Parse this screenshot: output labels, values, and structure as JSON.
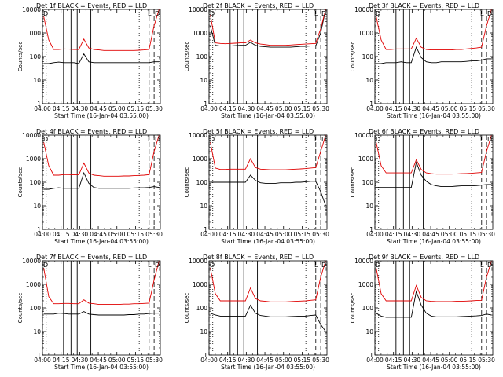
{
  "colors": {
    "events": "#000000",
    "lld": "#e00000",
    "axis": "#000000",
    "background": "#ffffff"
  },
  "chart_data": [
    {
      "type": "line",
      "title": "Det 1f BLACK = Events, RED = LLD",
      "xlabel": "Start Time (16-Jan-04 03:55:00)",
      "ylabel": "Counts/sec",
      "ylim": [
        1,
        10000
      ],
      "yscale": "log",
      "xlim": [
        "04:00",
        "05:35"
      ],
      "xticks": [
        "04:00",
        "04:15",
        "04:30",
        "04:45",
        "05:00",
        "05:15",
        "05:30"
      ],
      "ytick_labels": [
        "1",
        "10",
        "100",
        "1000",
        "10000"
      ],
      "corner_labels": [
        "D",
        "L",
        "D"
      ],
      "series": [
        {
          "name": "Events",
          "values": [
            50,
            50,
            55,
            58,
            55,
            55,
            55,
            50,
            130,
            60,
            55,
            55,
            55,
            55,
            55,
            55,
            55,
            55,
            55,
            55,
            55,
            55,
            60,
            60
          ]
        },
        {
          "name": "LLD",
          "values": [
            5000,
            500,
            200,
            200,
            210,
            205,
            200,
            200,
            550,
            230,
            200,
            190,
            180,
            180,
            180,
            180,
            180,
            180,
            180,
            185,
            190,
            200,
            2000,
            10000
          ]
        }
      ],
      "markers": {
        "dashed": [
          "04:00",
          "05:26",
          "05:30"
        ],
        "dotted": [
          "04:03",
          "05:18"
        ],
        "solid": [
          "04:17",
          "04:23",
          "04:28",
          "04:39"
        ]
      }
    },
    {
      "type": "line",
      "title": "Det 2f BLACK = Events, RED = LLD",
      "xlabel": "Start Time (16-Jan-04 03:55:00)",
      "ylabel": "Counts/sec",
      "ylim": [
        1,
        10000
      ],
      "yscale": "log",
      "xlim": [
        "04:00",
        "05:35"
      ],
      "xticks": [
        "04:00",
        "04:15",
        "04:30",
        "04:45",
        "05:00",
        "05:15",
        "05:30"
      ],
      "ytick_labels": [
        "1",
        "10",
        "100",
        "1000",
        "10000"
      ],
      "corner_labels": [
        "D",
        "L",
        "D"
      ],
      "series": [
        {
          "name": "Events",
          "values": [
            2000,
            300,
            280,
            280,
            280,
            290,
            300,
            300,
            400,
            300,
            270,
            260,
            250,
            250,
            250,
            250,
            250,
            260,
            270,
            270,
            280,
            280,
            1000,
            10000
          ]
        },
        {
          "name": "LLD",
          "values": [
            6000,
            380,
            360,
            350,
            360,
            370,
            380,
            380,
            500,
            380,
            340,
            320,
            300,
            300,
            300,
            300,
            310,
            320,
            330,
            340,
            350,
            360,
            1500,
            10000
          ]
        }
      ],
      "markers": {
        "dashed": [
          "04:00",
          "05:26",
          "05:30"
        ],
        "dotted": [
          "04:03",
          "05:18"
        ],
        "solid": [
          "04:17",
          "04:23",
          "04:28",
          "04:39"
        ]
      }
    },
    {
      "type": "line",
      "title": "Det 3f BLACK = Events, RED = LLD",
      "xlabel": "Start Time (16-Jan-04 03:55:00)",
      "ylabel": "Counts/sec",
      "ylim": [
        1,
        10000
      ],
      "yscale": "log",
      "xlim": [
        "04:00",
        "05:35"
      ],
      "xticks": [
        "04:00",
        "04:15",
        "04:30",
        "04:45",
        "05:00",
        "05:15",
        "05:30"
      ],
      "ytick_labels": [
        "1",
        "10",
        "100",
        "1000",
        "10000"
      ],
      "corner_labels": [
        "D",
        "L",
        "D"
      ],
      "series": [
        {
          "name": "Events",
          "values": [
            50,
            50,
            55,
            55,
            55,
            60,
            55,
            55,
            250,
            90,
            60,
            55,
            55,
            60,
            60,
            60,
            60,
            60,
            62,
            65,
            65,
            70,
            80,
            80
          ]
        },
        {
          "name": "LLD",
          "values": [
            5000,
            500,
            200,
            200,
            210,
            210,
            210,
            210,
            600,
            250,
            200,
            190,
            190,
            190,
            190,
            190,
            200,
            200,
            210,
            220,
            230,
            250,
            2000,
            10000
          ]
        }
      ],
      "markers": {
        "dashed": [
          "04:00",
          "05:26",
          "05:30"
        ],
        "dotted": [
          "04:03",
          "05:18"
        ],
        "solid": [
          "04:17",
          "04:23",
          "04:28",
          "04:39"
        ]
      }
    },
    {
      "type": "line",
      "title": "Det 4f BLACK = Events, RED = LLD",
      "xlabel": "Start Time (16-Jan-04 03:55:00)",
      "ylabel": "Counts/sec",
      "ylim": [
        1,
        10000
      ],
      "yscale": "log",
      "xlim": [
        "04:00",
        "05:35"
      ],
      "xticks": [
        "04:00",
        "04:15",
        "04:30",
        "04:45",
        "05:00",
        "05:15",
        "05:30"
      ],
      "ytick_labels": [
        "1",
        "10",
        "100",
        "1000",
        "10000"
      ],
      "corner_labels": [
        "D",
        "L",
        "D"
      ],
      "series": [
        {
          "name": "Events",
          "values": [
            50,
            50,
            55,
            58,
            55,
            55,
            55,
            55,
            250,
            90,
            60,
            55,
            55,
            55,
            55,
            55,
            55,
            55,
            57,
            58,
            58,
            60,
            65,
            60
          ]
        },
        {
          "name": "LLD",
          "values": [
            5000,
            500,
            200,
            200,
            210,
            210,
            205,
            205,
            650,
            250,
            200,
            190,
            180,
            180,
            180,
            180,
            185,
            185,
            190,
            195,
            200,
            210,
            2000,
            10000
          ]
        }
      ],
      "markers": {
        "dashed": [
          "04:00",
          "05:26",
          "05:30"
        ],
        "dotted": [
          "04:03",
          "05:18"
        ],
        "solid": [
          "04:17",
          "04:23",
          "04:28",
          "04:39"
        ]
      }
    },
    {
      "type": "line",
      "title": "Det 5f BLACK = Events, RED = LLD",
      "xlabel": "Start Time (16-Jan-04 03:55:00)",
      "ylabel": "Counts/sec",
      "ylim": [
        1,
        10000
      ],
      "yscale": "log",
      "xlim": [
        "04:00",
        "05:35"
      ],
      "xticks": [
        "04:00",
        "04:15",
        "04:30",
        "04:45",
        "05:00",
        "05:15",
        "05:30"
      ],
      "ytick_labels": [
        "1",
        "10",
        "100",
        "1000",
        "10000"
      ],
      "corner_labels": [
        "D",
        "L",
        "D"
      ],
      "series": [
        {
          "name": "Events",
          "values": [
            100,
            100,
            100,
            100,
            100,
            100,
            100,
            100,
            200,
            120,
            95,
            90,
            90,
            90,
            95,
            95,
            95,
            100,
            100,
            105,
            110,
            110,
            40,
            10
          ]
        },
        {
          "name": "LLD",
          "values": [
            5000,
            400,
            350,
            350,
            360,
            360,
            360,
            360,
            1000,
            420,
            360,
            350,
            340,
            340,
            340,
            340,
            350,
            360,
            370,
            380,
            400,
            420,
            2000,
            10000
          ]
        }
      ],
      "markers": {
        "dashed": [
          "04:00",
          "05:26",
          "05:30"
        ],
        "dotted": [
          "04:03",
          "05:18"
        ],
        "solid": [
          "04:17",
          "04:23",
          "04:28",
          "04:39"
        ]
      }
    },
    {
      "type": "line",
      "title": "Det 6f BLACK = Events, RED = LLD",
      "xlabel": "Start Time (16-Jan-04 03:55:00)",
      "ylabel": "Counts/sec",
      "ylim": [
        1,
        10000
      ],
      "yscale": "log",
      "xlim": [
        "04:00",
        "05:35"
      ],
      "xticks": [
        "04:00",
        "04:15",
        "04:30",
        "04:45",
        "05:00",
        "05:15",
        "05:30"
      ],
      "ytick_labels": [
        "1",
        "10",
        "100",
        "1000",
        "10000"
      ],
      "corner_labels": [
        "D",
        "L",
        "D"
      ],
      "series": [
        {
          "name": "Events",
          "values": [
            60,
            60,
            60,
            60,
            60,
            60,
            60,
            60,
            700,
            200,
            110,
            80,
            70,
            65,
            65,
            65,
            68,
            70,
            70,
            70,
            72,
            75,
            80,
            80
          ]
        },
        {
          "name": "LLD",
          "values": [
            5000,
            500,
            250,
            250,
            250,
            250,
            250,
            250,
            900,
            350,
            250,
            230,
            220,
            220,
            220,
            220,
            225,
            230,
            235,
            240,
            250,
            260,
            2000,
            10000
          ]
        }
      ],
      "markers": {
        "dashed": [
          "04:00",
          "05:26",
          "05:30"
        ],
        "dotted": [
          "04:03",
          "05:18"
        ],
        "solid": [
          "04:17",
          "04:23",
          "04:28",
          "04:39"
        ]
      }
    },
    {
      "type": "line",
      "title": "Det 7f BLACK = Events, RED = LLD",
      "xlabel": "Start Time (16-Jan-04 03:55:00)",
      "ylabel": "Counts/sec",
      "ylim": [
        1,
        10000
      ],
      "yscale": "log",
      "xlim": [
        "04:00",
        "05:35"
      ],
      "xticks": [
        "04:00",
        "04:15",
        "04:30",
        "04:45",
        "05:00",
        "05:15",
        "05:30"
      ],
      "ytick_labels": [
        "1",
        "10",
        "100",
        "1000",
        "10000"
      ],
      "corner_labels": [
        "D",
        "L",
        "D"
      ],
      "series": [
        {
          "name": "Events",
          "values": [
            55,
            55,
            55,
            60,
            58,
            55,
            55,
            55,
            70,
            55,
            52,
            50,
            50,
            50,
            50,
            50,
            50,
            52,
            52,
            55,
            55,
            58,
            60,
            60
          ]
        },
        {
          "name": "LLD",
          "values": [
            5000,
            300,
            150,
            150,
            155,
            155,
            150,
            150,
            220,
            160,
            150,
            140,
            140,
            140,
            140,
            140,
            145,
            145,
            150,
            150,
            155,
            160,
            1500,
            10000
          ]
        }
      ],
      "markers": {
        "dashed": [
          "04:00",
          "05:26",
          "05:30"
        ],
        "dotted": [
          "04:03",
          "05:18"
        ],
        "solid": [
          "04:17",
          "04:23",
          "04:28",
          "04:39"
        ]
      }
    },
    {
      "type": "line",
      "title": "Det 8f BLACK = Events, RED = LLD",
      "xlabel": "Start Time (16-Jan-04 03:55:00)",
      "ylabel": "Counts/sec",
      "ylim": [
        1,
        10000
      ],
      "yscale": "log",
      "xlim": [
        "04:00",
        "05:35"
      ],
      "xticks": [
        "04:00",
        "04:15",
        "04:30",
        "04:45",
        "05:00",
        "05:15",
        "05:30"
      ],
      "ytick_labels": [
        "1",
        "10",
        "100",
        "1000",
        "10000"
      ],
      "corner_labels": [
        "D",
        "L",
        "D"
      ],
      "series": [
        {
          "name": "Events",
          "values": [
            60,
            50,
            45,
            45,
            45,
            45,
            45,
            45,
            130,
            60,
            48,
            45,
            42,
            42,
            42,
            42,
            43,
            44,
            45,
            45,
            48,
            50,
            20,
            10
          ]
        },
        {
          "name": "LLD",
          "values": [
            5000,
            400,
            200,
            200,
            200,
            200,
            200,
            200,
            700,
            250,
            200,
            190,
            180,
            180,
            180,
            180,
            185,
            190,
            195,
            200,
            210,
            220,
            2000,
            10000
          ]
        }
      ],
      "markers": {
        "dashed": [
          "04:00",
          "05:26",
          "05:30"
        ],
        "dotted": [
          "04:03",
          "05:18"
        ],
        "solid": [
          "04:17",
          "04:23",
          "04:28",
          "04:39"
        ]
      }
    },
    {
      "type": "line",
      "title": "Det 9f BLACK = Events, RED = LLD",
      "xlabel": "Start Time (16-Jan-04 03:55:00)",
      "ylabel": "Counts/sec",
      "ylim": [
        1,
        10000
      ],
      "yscale": "log",
      "xlim": [
        "04:00",
        "05:35"
      ],
      "xticks": [
        "04:00",
        "04:15",
        "04:30",
        "04:45",
        "05:00",
        "05:15",
        "05:30"
      ],
      "ytick_labels": [
        "1",
        "10",
        "100",
        "1000",
        "10000"
      ],
      "corner_labels": [
        "D",
        "L",
        "D"
      ],
      "series": [
        {
          "name": "Events",
          "values": [
            60,
            45,
            40,
            40,
            40,
            40,
            40,
            40,
            500,
            130,
            60,
            45,
            42,
            42,
            42,
            42,
            42,
            43,
            44,
            45,
            46,
            48,
            55,
            50
          ]
        },
        {
          "name": "LLD",
          "values": [
            5000,
            400,
            200,
            200,
            200,
            200,
            200,
            200,
            900,
            280,
            200,
            190,
            185,
            185,
            185,
            185,
            190,
            190,
            195,
            200,
            205,
            210,
            2000,
            10000
          ]
        }
      ],
      "markers": {
        "dashed": [
          "04:00",
          "05:26",
          "05:30"
        ],
        "dotted": [
          "04:03",
          "05:18"
        ],
        "solid": [
          "04:17",
          "04:23",
          "04:28",
          "04:39"
        ]
      }
    }
  ]
}
